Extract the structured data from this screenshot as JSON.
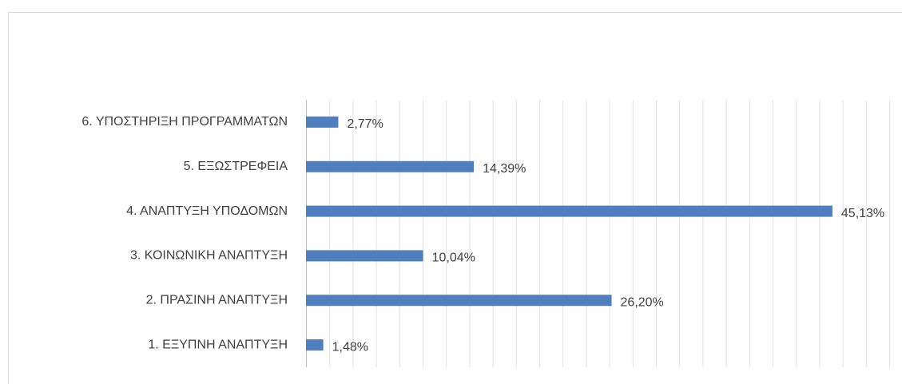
{
  "chart_data": {
    "type": "bar",
    "orientation": "horizontal",
    "categories": [
      "1. ΕΞΥΠΝΗ ΑΝΑΠΤΥΞΗ",
      "2. ΠΡΑΣΙΝΗ ΑΝΑΠΤΥΞΗ",
      "3. ΚΟΙΝΩΝΙΚΗ ΑΝΑΠΤΥΞΗ",
      "4. ΑΝΑΠΤΥΞΗ ΥΠΟΔΟΜΩΝ",
      "5. ΕΞΩΣΤΡΕΦΕΙΑ",
      "6. ΥΠΟΣΤΗΡΙΞΗ ΠΡΟΓΡΑΜΜΑΤΩΝ"
    ],
    "values": [
      1.48,
      26.2,
      10.04,
      45.13,
      14.39,
      2.77
    ],
    "value_labels": [
      "1,48%",
      "26,20%",
      "10,04%",
      "45,13%",
      "14,39%",
      "2,77%"
    ],
    "color": "#4f7fbf",
    "xlim": [
      0,
      50
    ],
    "xticks": [
      0,
      2,
      4,
      6,
      8,
      10,
      12,
      14,
      16,
      18,
      20,
      22,
      24,
      26,
      28,
      30,
      32,
      34,
      36,
      38,
      40,
      42,
      44,
      46,
      48,
      50
    ],
    "grid": true
  }
}
